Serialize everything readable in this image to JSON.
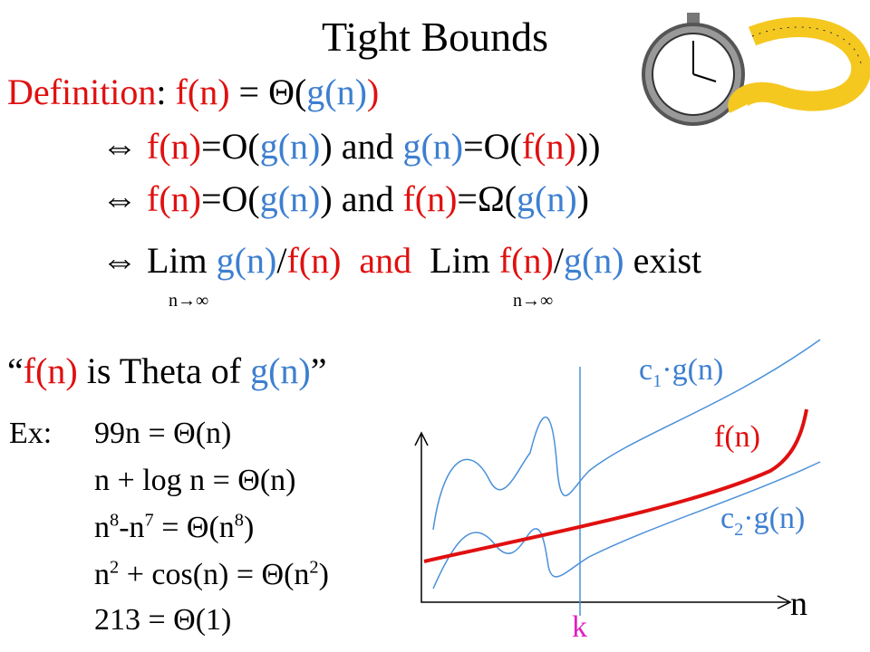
{
  "title": "Tight Bounds",
  "definition": [
    "Definition",
    ": ",
    "f(n)",
    " = Θ(",
    "g(n)",
    ")"
  ],
  "line1": [
    "⇔",
    "f(n)",
    "=O(",
    "g(n)",
    ") and ",
    "g(n)",
    "=O(",
    "f(n)",
    "))"
  ],
  "line2": [
    "⇔",
    "f(n)",
    "=O(",
    "g(n)",
    ") and ",
    "f(n)",
    "=Ω(",
    "g(n)",
    ")"
  ],
  "line3": [
    "⇔",
    "Lim ",
    "g(n)",
    "/",
    "f(n)",
    "and",
    "Lim ",
    "f(n)",
    "/",
    "g(n)",
    " exist"
  ],
  "limits": [
    "n→∞",
    "n→∞"
  ],
  "quote": [
    "“",
    "f(n)",
    " is Theta of ",
    "g(n)",
    "”"
  ],
  "examples": {
    "label": "Ex:",
    "items": [
      [
        "99n = Θ(n)"
      ],
      [
        "n + log n = Θ(n)"
      ],
      [
        "n",
        "8",
        "-n",
        "7",
        " = Θ(n",
        "8",
        ")"
      ],
      [
        "n",
        "2",
        " + cos(n) = Θ(n",
        "2",
        ")"
      ],
      [
        "213 = Θ(1)"
      ]
    ]
  },
  "graph": {
    "upper": [
      "c",
      "1",
      "·g(n)"
    ],
    "middle": "f(n)",
    "lower": [
      "c",
      "2",
      "·g(n)"
    ],
    "k": "k",
    "n": "n"
  }
}
